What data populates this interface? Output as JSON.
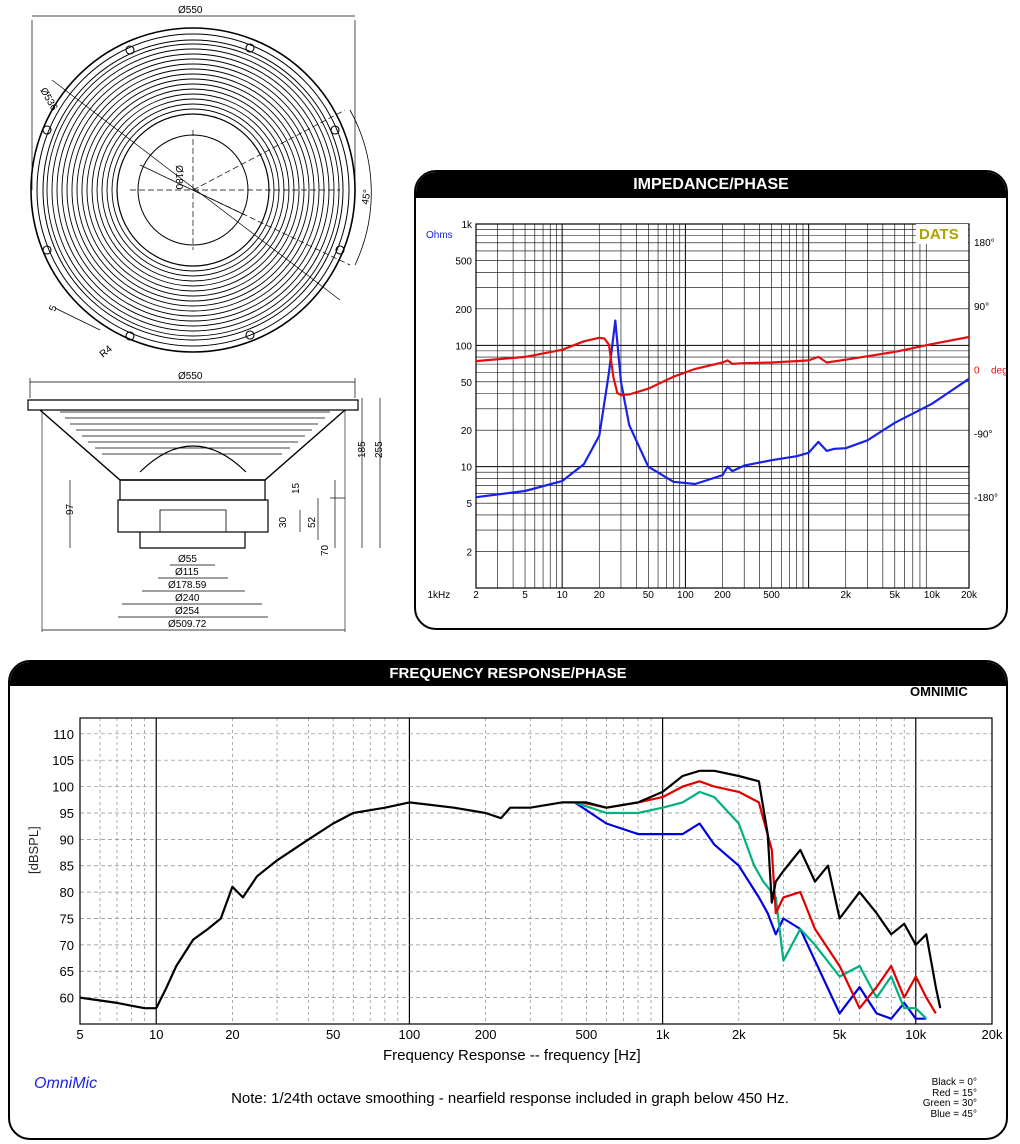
{
  "drawing": {
    "top_dims": [
      "Ø550",
      "Ø536",
      "Ø180",
      "45°",
      "5",
      "R4"
    ],
    "side_dims": [
      "Ø550",
      "185",
      "255",
      "97",
      "15",
      "30",
      "52",
      "70"
    ],
    "bottom_dims": [
      "Ø55",
      "Ø115",
      "Ø178.59",
      "Ø240",
      "Ø254",
      "Ø509.72"
    ]
  },
  "colors": {
    "black": "#000000",
    "red": "#e00000",
    "green": "#00b080",
    "blue": "#0000e0",
    "imp_blue": "#1a22e6",
    "phase_red": "#e01010",
    "dats": "#b0a000"
  },
  "impedance": {
    "title": "IMPEDANCE/PHASE",
    "unit_left": "Ohms",
    "badge": "DATS",
    "y_ticks": [
      "1k",
      "500",
      "200",
      "100",
      "50",
      "20",
      "10",
      "5",
      "2"
    ],
    "right_ticks": [
      "180°",
      "90°",
      "0",
      "-90°",
      "-180°"
    ],
    "right_unit": "deg",
    "x_ticks": [
      "2",
      "5",
      "10",
      "20",
      "50",
      "100",
      "200",
      "500",
      "1kHz",
      "2k",
      "5k",
      "10k",
      "20k"
    ],
    "chart_data": {
      "type": "line",
      "x_scale": "log",
      "xlim": [
        2,
        20000
      ],
      "ylim": [
        1,
        1000
      ],
      "series": [
        {
          "name": "impedance",
          "x": [
            2,
            5,
            10,
            15,
            20,
            24,
            27,
            30,
            35,
            50,
            80,
            120,
            200,
            220,
            240,
            300,
            500,
            800,
            1000,
            1200,
            1400,
            1600,
            2000,
            3000,
            5000,
            10000,
            20000
          ],
          "y": [
            5.6,
            6.3,
            7.6,
            10.5,
            18,
            60,
            160,
            50,
            22,
            10,
            7.5,
            7.2,
            8.5,
            10,
            9.2,
            10.2,
            11.3,
            12.2,
            13,
            16,
            13.5,
            14,
            14.2,
            16.5,
            23,
            33,
            53
          ]
        },
        {
          "name": "phase",
          "x": [
            2,
            5,
            10,
            15,
            20,
            22,
            24,
            26,
            28,
            30,
            35,
            50,
            80,
            120,
            200,
            220,
            240,
            300,
            500,
            800,
            1000,
            1200,
            1400,
            2000,
            5000,
            10000,
            20000
          ],
          "y": [
            12,
            18,
            28,
            40,
            45,
            44,
            35,
            -10,
            -33,
            -36,
            -35,
            -27,
            -10,
            1,
            10,
            13,
            8,
            9,
            10,
            12,
            13,
            18,
            10,
            14,
            25,
            36,
            46
          ]
        }
      ]
    }
  },
  "frequency": {
    "title": "FREQUENCY RESPONSE/PHASE",
    "brand": "OMNIMIC",
    "ylabel": "[dBSPL]",
    "xlabel": "Frequency Response -- frequency [Hz]",
    "y_ticks": [
      "110",
      "105",
      "100",
      "95",
      "90",
      "85",
      "80",
      "75",
      "70",
      "65",
      "60"
    ],
    "x_ticks": [
      "5",
      "10",
      "20",
      "50",
      "100",
      "200",
      "500",
      "1k",
      "2k",
      "5k",
      "10k",
      "20k"
    ],
    "footer_brand": "OmniMic",
    "note": "Note: 1/24th octave smoothing - nearfield response included in graph below 450 Hz.",
    "legend": [
      "Black = 0°",
      "Red = 15°",
      "Green = 30°",
      "Blue = 45°"
    ],
    "chart_data": {
      "type": "line",
      "x_scale": "log",
      "xlim": [
        5,
        20000
      ],
      "ylim": [
        55,
        113
      ],
      "series": [
        {
          "name": "Black = 0°",
          "x": [
            5,
            7,
            9,
            10,
            11,
            12,
            14,
            16,
            18,
            20,
            22,
            25,
            30,
            40,
            50,
            60,
            80,
            100,
            150,
            200,
            230,
            250,
            300,
            400,
            500,
            600,
            800,
            1000,
            1200,
            1400,
            1600,
            2000,
            2400,
            2600,
            2700,
            2800,
            3000,
            3500,
            4000,
            4500,
            5000,
            6000,
            7000,
            8000,
            9000,
            10000,
            11000,
            12000,
            12500
          ],
          "y": [
            60,
            59,
            58,
            58,
            62,
            66,
            71,
            73,
            75,
            81,
            79,
            83,
            86,
            90,
            93,
            95,
            96,
            97,
            96,
            95,
            94,
            96,
            96,
            97,
            97,
            96,
            97,
            99,
            102,
            103,
            103,
            102,
            101,
            91,
            78,
            82,
            84,
            88,
            82,
            85,
            75,
            80,
            76,
            72,
            74,
            70,
            72,
            62,
            58
          ]
        },
        {
          "name": "Red = 15°",
          "x": [
            480,
            600,
            800,
            1000,
            1200,
            1400,
            1600,
            2000,
            2400,
            2700,
            2800,
            3000,
            3500,
            4000,
            5000,
            6000,
            7000,
            8000,
            9000,
            10000,
            11000,
            12000
          ],
          "y": [
            97,
            96,
            97,
            98,
            100,
            101,
            100,
            99,
            97,
            88,
            76,
            79,
            80,
            73,
            66,
            58,
            62,
            66,
            60,
            64,
            60,
            57
          ]
        },
        {
          "name": "Green = 30°",
          "x": [
            450,
            600,
            800,
            1000,
            1200,
            1400,
            1600,
            2000,
            2300,
            2500,
            2800,
            3000,
            3500,
            4000,
            5000,
            6000,
            7000,
            8000,
            9000,
            10000,
            11000
          ],
          "y": [
            97,
            95,
            95,
            96,
            97,
            99,
            98,
            93,
            85,
            82,
            79,
            67,
            73,
            70,
            64,
            66,
            60,
            64,
            58,
            58,
            56
          ]
        },
        {
          "name": "Blue = 45°",
          "x": [
            450,
            600,
            800,
            1000,
            1200,
            1400,
            1600,
            2000,
            2400,
            2600,
            2800,
            3000,
            3500,
            4000,
            5000,
            6000,
            7000,
            8000,
            9000,
            10000,
            11000
          ],
          "y": [
            97,
            93,
            91,
            91,
            91,
            93,
            89,
            85,
            79,
            76,
            72,
            75,
            73,
            67,
            57,
            62,
            57,
            56,
            59,
            56,
            56
          ]
        }
      ]
    }
  }
}
